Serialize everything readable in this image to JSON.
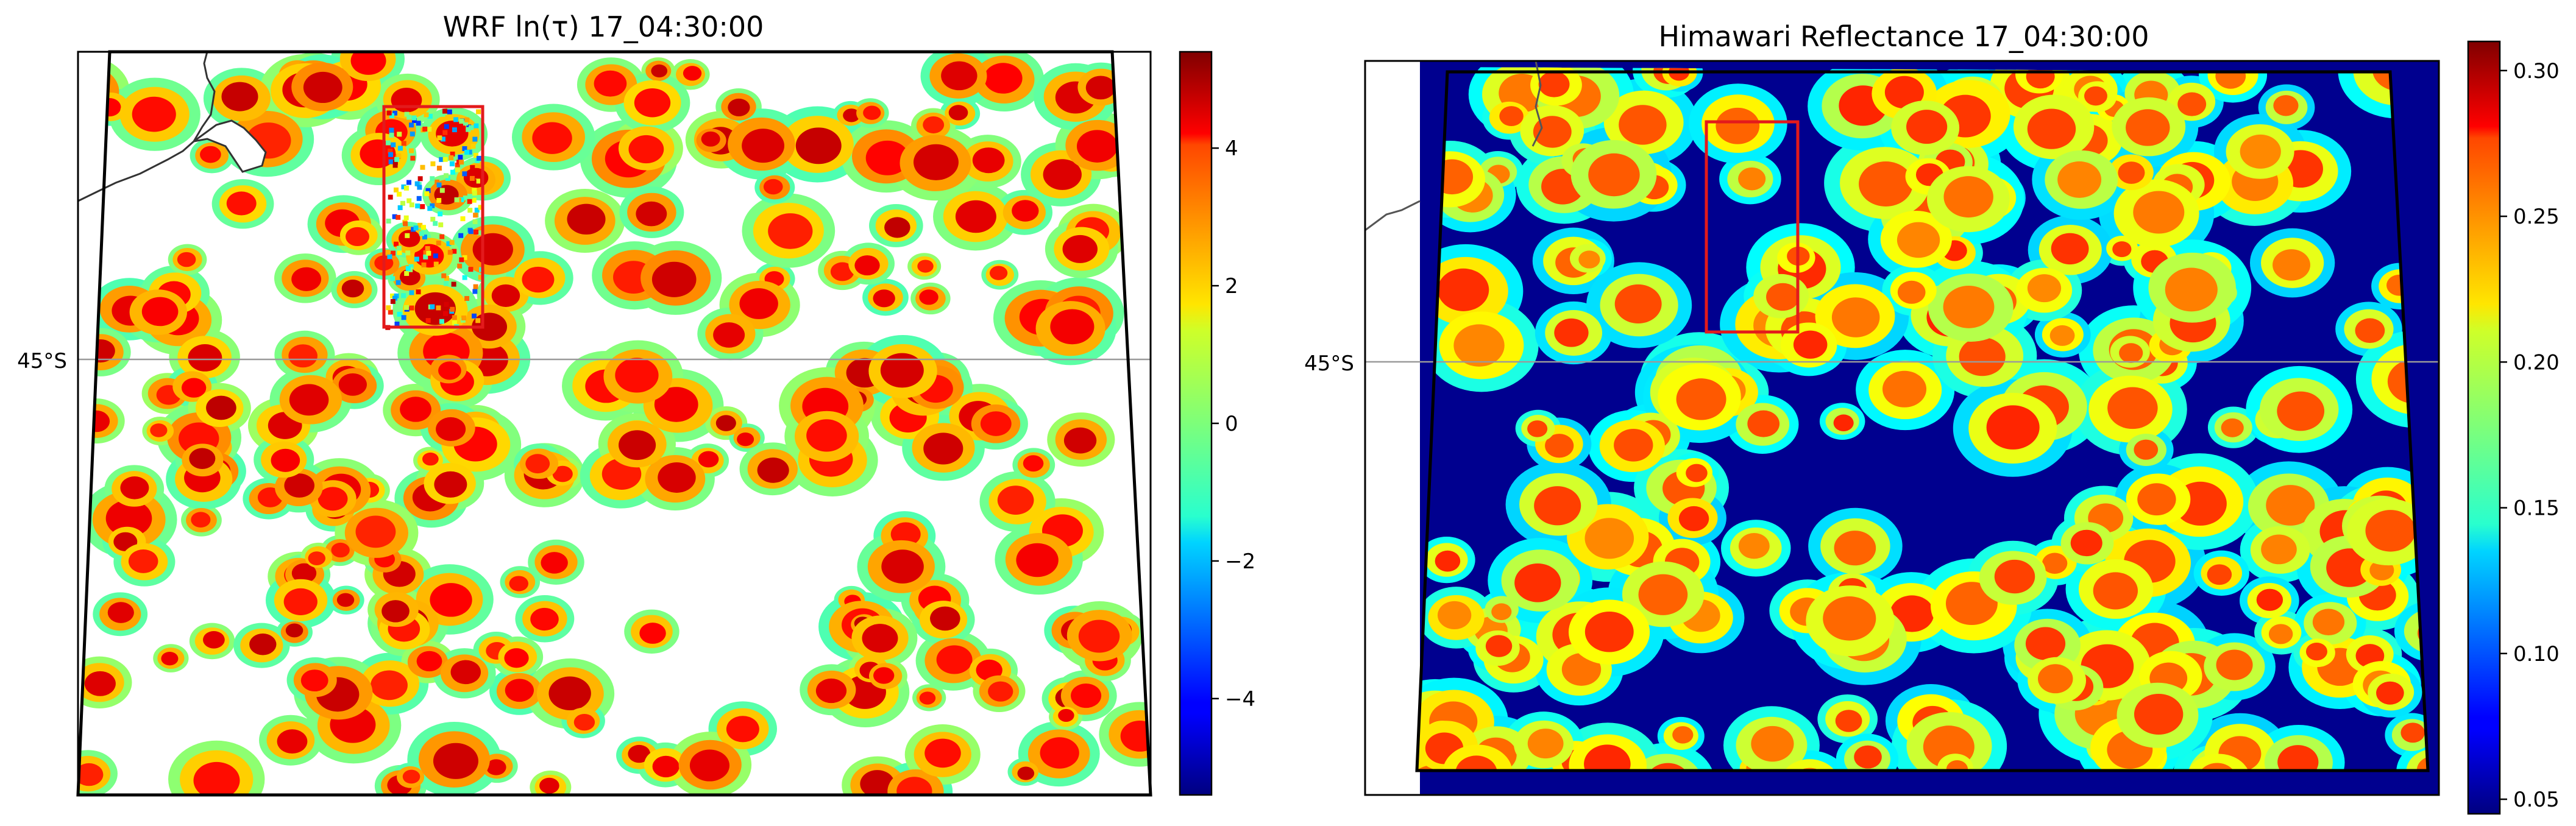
{
  "chart_data": [
    {
      "type": "heatmap",
      "title": "WRF ln(τ) 17_04:30:00",
      "lat_label": "45°S",
      "colorbar": {
        "colormap": "jet",
        "range": [
          -5.4,
          5.4
        ],
        "ticks": [
          4,
          2,
          0,
          -2,
          -4
        ],
        "tick_labels": [
          "4",
          "2",
          "0",
          "−2",
          "−4"
        ]
      },
      "masked_color": "#ffffff",
      "highlight_box_color": "#e31a1c",
      "coastline": true,
      "grid": "latitude line only"
    },
    {
      "type": "heatmap",
      "title": "Himawari Reflectance 17_04:30:00",
      "lat_label": "45°S",
      "colorbar": {
        "colormap": "jet",
        "range": [
          0.045,
          0.31
        ],
        "ticks": [
          0.3,
          0.25,
          0.2,
          0.15,
          0.1,
          0.05
        ],
        "tick_labels": [
          "0.30",
          "0.25",
          "0.20",
          "0.15",
          "0.10",
          "0.05"
        ]
      },
      "highlight_box_color": "#e31a1c",
      "coastline": true,
      "grid": "latitude line only"
    }
  ]
}
